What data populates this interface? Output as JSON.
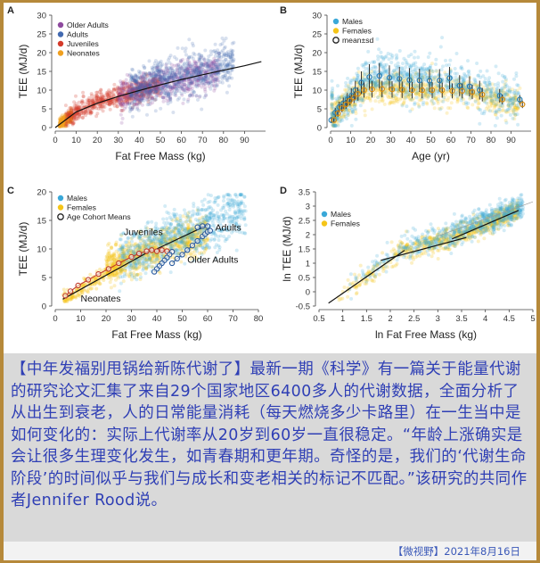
{
  "caption": {
    "text": "【中年发福别甩锅给新陈代谢了】最新一期《科学》有一篇关于能量代谢的研究论文汇集了来自29个国家地区6400多人的代谢数据，全面分析了从出生到衰老，人的日常能量消耗（每天燃烧多少卡路里）在一生当中是如何变化的：实际上代谢率从20岁到60岁一直很稳定。“年龄上涨确实是会让很多生理变化发生，如青春期和更年期。奇怪的是，我们的‘代谢生命阶段’的时间似乎与我们与成长和变老相关的标记不匹配。”该研究的共同作者Jennifer Rood说。"
  },
  "footer": {
    "text": "【微视野】2021年8月16日"
  },
  "colors": {
    "older_adults": "#8e4a9e",
    "adults": "#4169b0",
    "juveniles": "#d43a2a",
    "neonates": "#f0a020",
    "males": "#3aa8d8",
    "females": "#f5c518",
    "mean_marker": "#222222",
    "fit_line": "#111111",
    "caption_text": "#2f3fb5",
    "frame": "#b6893a"
  },
  "chart_data": [
    {
      "panel": "A",
      "type": "scatter",
      "xlabel": "Fat Free Mass (kg)",
      "ylabel": "TEE (MJ/d)",
      "xlim": [
        0,
        100
      ],
      "ylim": [
        0,
        30
      ],
      "xticks": [
        0,
        10,
        20,
        30,
        40,
        50,
        60,
        70,
        80,
        90
      ],
      "yticks": [
        0,
        5,
        10,
        15,
        20,
        25,
        30
      ],
      "legend_position": "top-left",
      "series": [
        {
          "name": "Older Adults",
          "x_range": [
            30,
            80
          ],
          "y_center": 10
        },
        {
          "name": "Adults",
          "x_range": [
            35,
            90
          ],
          "y_center": 12
        },
        {
          "name": "Juveniles",
          "x_range": [
            5,
            55
          ],
          "y_center": 7
        },
        {
          "name": "Neonates",
          "x_range": [
            1,
            8
          ],
          "y_center": 1.5
        }
      ],
      "fit_line": {
        "x": [
          0,
          10,
          20,
          30,
          40,
          50,
          60,
          70,
          80,
          90,
          98
        ],
        "y": [
          0,
          4.2,
          6.5,
          8.3,
          9.9,
          11.4,
          12.8,
          14.1,
          15.3,
          16.5,
          17.6
        ]
      }
    },
    {
      "panel": "B",
      "type": "scatter",
      "xlabel": "Age (yr)",
      "ylabel": "TEE (MJ/d)",
      "xlim": [
        0,
        100
      ],
      "ylim": [
        0,
        30
      ],
      "xticks": [
        0,
        10,
        20,
        30,
        40,
        50,
        60,
        70,
        80,
        90
      ],
      "yticks": [
        0,
        5,
        10,
        15,
        20,
        25,
        30
      ],
      "legend_position": "top-left",
      "series": [
        {
          "name": "Males",
          "x": [
            1,
            3,
            5,
            7,
            9,
            11,
            13,
            16,
            20,
            25,
            30,
            35,
            40,
            45,
            50,
            55,
            60,
            65,
            70,
            75,
            85,
            95
          ],
          "mean": [
            2,
            4,
            5.5,
            6.5,
            7.5,
            8.5,
            10,
            12,
            13.5,
            13.8,
            13.3,
            13,
            12.7,
            12.6,
            12.5,
            12.6,
            13.2,
            11.2,
            11,
            10,
            8.5,
            7.5
          ],
          "sd": [
            0.8,
            1.2,
            1.4,
            1.5,
            1.7,
            2,
            2.5,
            3,
            3.4,
            3.4,
            3.3,
            3.2,
            3.2,
            3.1,
            3,
            3,
            3,
            2.8,
            2.7,
            2.5,
            1.8,
            1.2
          ]
        },
        {
          "name": "Females",
          "x": [
            1,
            3,
            5,
            7,
            9,
            11,
            13,
            16,
            20,
            25,
            30,
            35,
            40,
            45,
            50,
            55,
            60,
            65,
            70,
            75,
            85,
            95
          ],
          "mean": [
            2,
            3.8,
            5.2,
            6.2,
            7.2,
            8,
            9,
            10,
            10.2,
            10.3,
            10.2,
            10.1,
            10,
            10,
            10,
            10,
            9.8,
            9.8,
            9.5,
            8.8,
            7.5,
            6.2
          ],
          "sd": [
            0.6,
            0.9,
            1.1,
            1.2,
            1.3,
            1.5,
            1.8,
            2,
            2.2,
            2.2,
            2.2,
            2.2,
            2.2,
            2.2,
            2.1,
            2,
            2,
            2,
            1.9,
            1.8,
            1.3,
            1
          ]
        },
        {
          "name": "mean±sd"
        }
      ]
    },
    {
      "panel": "C",
      "type": "scatter",
      "xlabel": "Fat Free Mass (kg)",
      "ylabel": "TEE (MJ/d)",
      "xlim": [
        0,
        80
      ],
      "ylim": [
        0,
        20
      ],
      "xticks": [
        0,
        10,
        20,
        30,
        40,
        50,
        60,
        70,
        80
      ],
      "yticks": [
        0,
        5,
        10,
        15,
        20
      ],
      "legend_position": "top-left",
      "series": [
        {
          "name": "Males"
        },
        {
          "name": "Females"
        },
        {
          "name": "Age Cohort Means"
        }
      ],
      "cohort_paths": [
        {
          "group": "juveniles",
          "x": [
            4,
            6,
            9,
            13,
            17,
            21,
            25,
            30,
            33,
            36,
            38,
            40,
            42,
            44,
            46
          ],
          "y": [
            1.8,
            2.6,
            3.6,
            4.6,
            5.6,
            6.5,
            7.5,
            8.6,
            9.2,
            9.6,
            9.8,
            9.6,
            9.8,
            9.6,
            9.5
          ]
        },
        {
          "name": "older",
          "group": "older_adults",
          "x": [
            46,
            45,
            44,
            43,
            42,
            41,
            40,
            39
          ],
          "y": [
            9.5,
            9.0,
            8.5,
            8.0,
            7.5,
            7.0,
            6.5,
            6.0
          ]
        },
        {
          "group": "males_adult",
          "x": [
            46,
            48,
            50,
            52,
            54,
            56,
            58,
            59,
            60,
            61
          ],
          "y": [
            7.5,
            8.3,
            9,
            9.8,
            10.6,
            11.4,
            12.2,
            12.6,
            13,
            13.2
          ]
        },
        {
          "group": "adult_upper",
          "x": [
            56,
            58,
            60
          ],
          "y": [
            13.8,
            14.0,
            14.0
          ]
        }
      ],
      "fit_lines": [
        {
          "x": [
            3,
            38
          ],
          "y": [
            1.2,
            9.8
          ]
        },
        {
          "x": [
            40,
            60
          ],
          "y": [
            10,
            14.2
          ]
        }
      ],
      "annotations": [
        "Juveniles",
        "Adults",
        "Older Adults",
        "Neonates"
      ]
    },
    {
      "panel": "D",
      "type": "scatter",
      "xlabel": "ln Fat Free Mass (kg)",
      "ylabel": "ln TEE (MJ/d)",
      "xlim": [
        0.5,
        5.0
      ],
      "ylim": [
        -0.5,
        3.5
      ],
      "xticks": [
        0.5,
        1.0,
        1.5,
        2.0,
        2.5,
        3.0,
        3.5,
        4.0,
        4.5,
        5.0
      ],
      "yticks": [
        -0.5,
        0.0,
        0.5,
        1.0,
        1.5,
        2.0,
        2.5,
        3.0,
        3.5
      ],
      "legend_position": "top-left",
      "series": [
        {
          "name": "Males"
        },
        {
          "name": "Females"
        }
      ],
      "fit_lines": [
        {
          "x": [
            0.7,
            2.3
          ],
          "y": [
            -0.4,
            1.45
          ]
        },
        {
          "x": [
            1.8,
            3.6
          ],
          "y": [
            1.1,
            1.9
          ]
        },
        {
          "x": [
            3.3,
            4.7
          ],
          "y": [
            1.85,
            2.85
          ]
        }
      ]
    }
  ]
}
